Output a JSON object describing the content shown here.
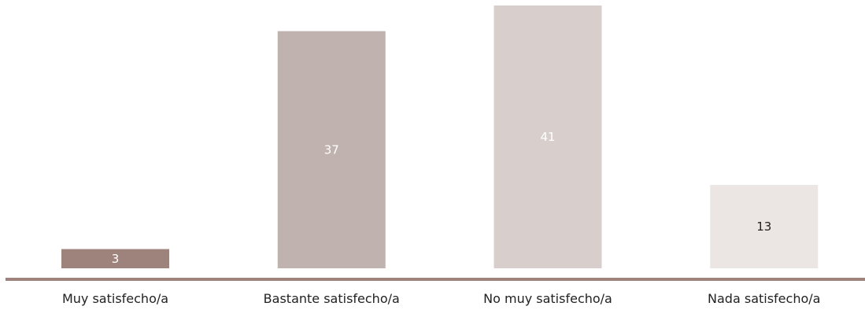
{
  "chart_data": {
    "type": "bar",
    "title": "",
    "xlabel": "",
    "ylabel": "",
    "categories": [
      "Muy satisfecho/a",
      "Bastante satisfecho/a",
      "No muy satisfecho/a",
      "Nada satisfecho/a"
    ],
    "values": [
      3,
      37,
      41,
      13
    ],
    "value_labels": [
      "3",
      "37",
      "41",
      "13"
    ],
    "ylim": [
      0,
      41
    ],
    "grid": false,
    "legend": "none",
    "colors": [
      "#9e827c",
      "#c0b2ae",
      "#d8cfcc",
      "#ebe5e4"
    ],
    "label_colors": [
      "#ffffff",
      "#ffffff",
      "#ffffff",
      "#222222"
    ],
    "axis_color": "#9e827c"
  }
}
